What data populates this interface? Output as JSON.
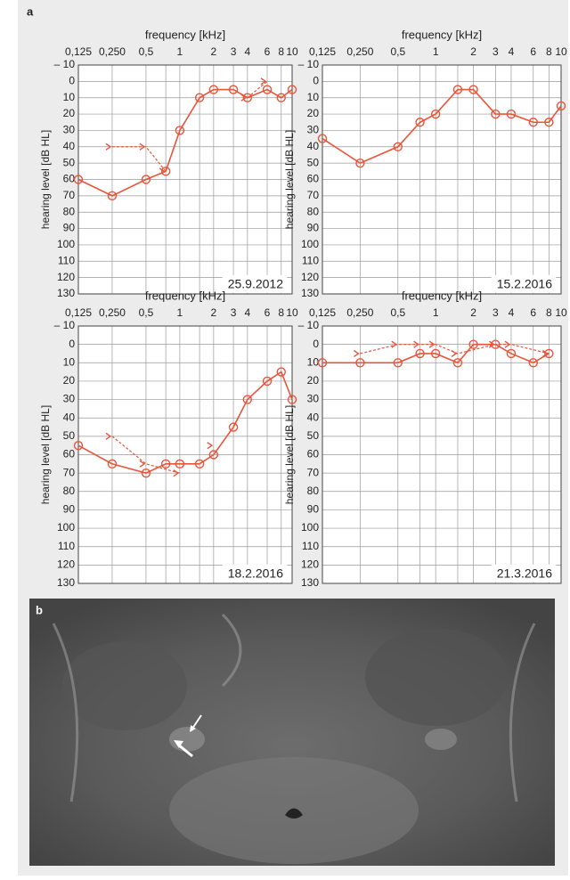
{
  "panel_labels": [
    "a",
    "b"
  ],
  "chart_data": [
    {
      "type": "line",
      "title": "frequency  [kHz]",
      "ylabel": "hearing level  [dB HL]",
      "annotation": "25.9.2012",
      "xscale": "log",
      "xlim": [
        0.125,
        10
      ],
      "xticks": [
        {
          "value": 0.125,
          "label": "0,125"
        },
        {
          "value": 0.25,
          "label": "0,250"
        },
        {
          "value": 0.5,
          "label": "0,5"
        },
        1,
        2,
        3,
        4,
        6,
        8,
        10
      ],
      "xminor": [
        0.75,
        1.5
      ],
      "ylim": [
        -10,
        130
      ],
      "invert_y": true,
      "yticks": [
        {
          "value": -10,
          "label": "– 10"
        },
        0,
        10,
        20,
        30,
        40,
        50,
        60,
        70,
        80,
        90,
        100,
        110,
        120,
        130
      ],
      "grid": true,
      "series": [
        {
          "marker": "circle",
          "dashed": false,
          "color": "#e8553a",
          "x": [
            0.125,
            0.25,
            0.5,
            0.75,
            1,
            1.5,
            2,
            3,
            4,
            6,
            8,
            10
          ],
          "values": [
            60,
            70,
            60,
            55,
            30,
            10,
            5,
            5,
            10,
            5,
            10,
            5
          ]
        },
        {
          "marker": "chevron",
          "dashed": true,
          "color": "#e8553a",
          "x": [
            0.25,
            0.5,
            0.75,
            1,
            4,
            6
          ],
          "values": [
            40,
            40,
            55,
            null,
            10,
            0
          ]
        }
      ]
    },
    {
      "type": "line",
      "title": "frequency  [kHz]",
      "ylabel": "hearing level  [dB HL]",
      "annotation": "15.2.2016",
      "xscale": "log",
      "xlim": [
        0.125,
        10
      ],
      "xticks": [
        {
          "value": 0.125,
          "label": "0,125"
        },
        {
          "value": 0.25,
          "label": "0,250"
        },
        {
          "value": 0.5,
          "label": "0,5"
        },
        1,
        2,
        3,
        4,
        6,
        8,
        10
      ],
      "xminor": [
        0.75,
        1.5
      ],
      "ylim": [
        -10,
        130
      ],
      "invert_y": true,
      "yticks": [
        {
          "value": -10,
          "label": "– 10"
        },
        0,
        10,
        20,
        30,
        40,
        50,
        60,
        70,
        80,
        90,
        100,
        110,
        120,
        130
      ],
      "grid": true,
      "series": [
        {
          "marker": "circle",
          "dashed": false,
          "color": "#e8553a",
          "x": [
            0.125,
            0.25,
            0.5,
            0.75,
            1,
            1.5,
            2,
            3,
            4,
            6,
            8,
            10
          ],
          "values": [
            35,
            50,
            40,
            25,
            20,
            5,
            5,
            20,
            20,
            25,
            25,
            15
          ]
        }
      ]
    },
    {
      "type": "line",
      "title": "frequency  [kHz]",
      "ylabel": "hearing level  [dB HL]",
      "annotation": "18.2.2016",
      "xscale": "log",
      "xlim": [
        0.125,
        10
      ],
      "xticks": [
        {
          "value": 0.125,
          "label": "0,125"
        },
        {
          "value": 0.25,
          "label": "0,250"
        },
        {
          "value": 0.5,
          "label": "0,5"
        },
        1,
        2,
        3,
        4,
        6,
        8,
        10
      ],
      "xminor": [
        0.75,
        1.5
      ],
      "ylim": [
        -10,
        130
      ],
      "invert_y": true,
      "yticks": [
        {
          "value": -10,
          "label": "– 10"
        },
        0,
        10,
        20,
        30,
        40,
        50,
        60,
        70,
        80,
        90,
        100,
        110,
        120,
        130
      ],
      "grid": true,
      "series": [
        {
          "marker": "circle",
          "dashed": false,
          "color": "#e8553a",
          "x": [
            0.125,
            0.25,
            0.5,
            0.75,
            1,
            1.5,
            2,
            3,
            4,
            6,
            8,
            10
          ],
          "values": [
            55,
            65,
            70,
            65,
            65,
            65,
            60,
            45,
            30,
            20,
            15,
            30
          ]
        },
        {
          "marker": "chevron",
          "dashed": true,
          "color": "#e8553a",
          "x": [
            0.25,
            0.5,
            1,
            1.5,
            2
          ],
          "values": [
            50,
            65,
            70,
            null,
            55
          ]
        }
      ]
    },
    {
      "type": "line",
      "title": "frequency  [kHz]",
      "ylabel": "hearing level  [dB HL]",
      "annotation": "21.3.2016",
      "xscale": "log",
      "xlim": [
        0.125,
        10
      ],
      "xticks": [
        {
          "value": 0.125,
          "label": "0,125"
        },
        {
          "value": 0.25,
          "label": "0,250"
        },
        {
          "value": 0.5,
          "label": "0,5"
        },
        1,
        2,
        3,
        4,
        6,
        8,
        10
      ],
      "xminor": [
        0.75,
        1.5
      ],
      "ylim": [
        -10,
        130
      ],
      "invert_y": true,
      "yticks": [
        {
          "value": -10,
          "label": "– 10"
        },
        0,
        10,
        20,
        30,
        40,
        50,
        60,
        70,
        80,
        90,
        100,
        110,
        120,
        130
      ],
      "grid": true,
      "series": [
        {
          "marker": "circle",
          "dashed": false,
          "color": "#e8553a",
          "x": [
            0.125,
            0.25,
            0.5,
            0.75,
            1,
            1.5,
            2,
            3,
            4,
            6,
            8
          ],
          "values": [
            10,
            10,
            10,
            5,
            5,
            10,
            0,
            0,
            5,
            10,
            5
          ]
        },
        {
          "marker": "chevron",
          "dashed": true,
          "color": "#e8553a",
          "x": [
            0.25,
            0.5,
            0.75,
            1,
            1.5,
            3,
            4,
            8
          ],
          "values": [
            5,
            0,
            0,
            0,
            5,
            0,
            0,
            5
          ]
        }
      ]
    }
  ]
}
